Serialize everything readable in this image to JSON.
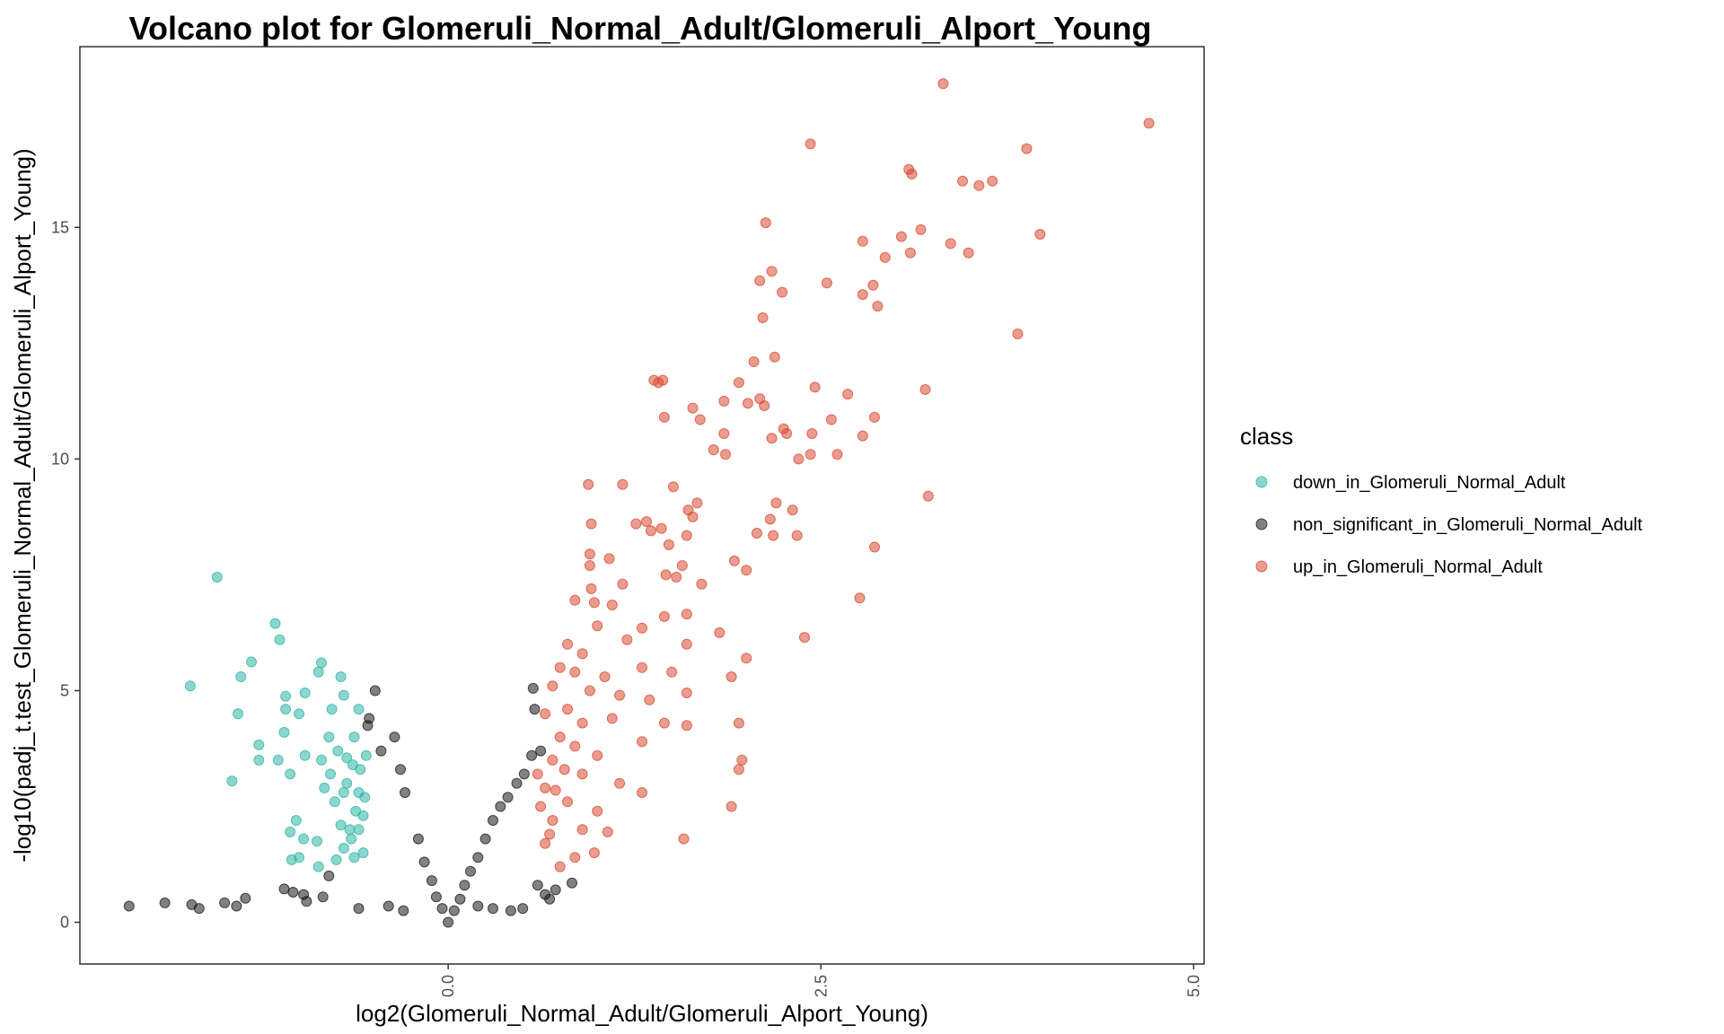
{
  "chart_data": {
    "type": "scatter",
    "title": "Volcano plot for Glomeruli_Normal_Adult/Glomeruli_Alport_Young",
    "xlabel": "log2(Glomeruli_Normal_Adult/Glomeruli_Alport_Young)",
    "ylabel": "-log10(padj_t.test_Glomeruli_Normal_Adult/Glomeruli_Alport_Young)",
    "xlim": [
      -2.47,
      5.07
    ],
    "ylim": [
      -0.9,
      18.9
    ],
    "x_ticks": [
      0.0,
      2.5,
      5.0
    ],
    "x_tick_labels": [
      "0.0",
      "2.5",
      "5.0"
    ],
    "y_ticks": [
      0,
      5,
      10,
      15
    ],
    "y_tick_labels": [
      "0",
      "5",
      "10",
      "15"
    ],
    "grid": false,
    "legend": {
      "title": "class",
      "position": "right"
    },
    "series": [
      {
        "name": "down_in_Glomeruli_Normal_Adult",
        "color": "#2db5a6",
        "points": [
          [
            -1.55,
            7.45
          ],
          [
            -1.73,
            5.1
          ],
          [
            -1.39,
            5.3
          ],
          [
            -1.32,
            5.62
          ],
          [
            -1.16,
            6.45
          ],
          [
            -1.13,
            6.1
          ],
          [
            -1.09,
            4.88
          ],
          [
            -1.09,
            4.6
          ],
          [
            -0.96,
            4.95
          ],
          [
            -0.85,
            5.6
          ],
          [
            -0.87,
            5.4
          ],
          [
            -0.72,
            5.3
          ],
          [
            -0.7,
            4.9
          ],
          [
            -0.78,
            4.6
          ],
          [
            -0.6,
            4.6
          ],
          [
            -1.41,
            4.5
          ],
          [
            -1.27,
            3.83
          ],
          [
            -1.27,
            3.5
          ],
          [
            -1.1,
            4.1
          ],
          [
            -1.0,
            4.5
          ],
          [
            -0.8,
            4.0
          ],
          [
            -0.63,
            4.0
          ],
          [
            -1.14,
            3.5
          ],
          [
            -1.06,
            3.2
          ],
          [
            -0.96,
            3.6
          ],
          [
            -0.85,
            3.5
          ],
          [
            -0.79,
            3.2
          ],
          [
            -1.45,
            3.05
          ],
          [
            -1.02,
            2.2
          ],
          [
            -1.06,
            1.95
          ],
          [
            -0.97,
            1.8
          ],
          [
            -0.88,
            1.75
          ],
          [
            -1.0,
            1.4
          ],
          [
            -0.87,
            1.2
          ],
          [
            -1.05,
            1.35
          ],
          [
            -0.76,
            2.6
          ],
          [
            -0.72,
            2.1
          ],
          [
            -0.68,
            3.0
          ],
          [
            -0.64,
            3.4
          ],
          [
            -0.6,
            2.8
          ],
          [
            -0.57,
            2.3
          ],
          [
            -0.55,
            3.6
          ],
          [
            -0.7,
            1.6
          ],
          [
            -0.65,
            1.8
          ],
          [
            -0.62,
            2.4
          ],
          [
            -0.74,
            3.7
          ],
          [
            -0.68,
            3.55
          ],
          [
            -0.83,
            2.9
          ],
          [
            -0.59,
            3.3
          ],
          [
            -0.66,
            2.0
          ],
          [
            -0.57,
            1.5
          ],
          [
            -0.63,
            1.4
          ],
          [
            -0.7,
            2.8
          ],
          [
            -0.75,
            1.35
          ],
          [
            -0.6,
            2.0
          ],
          [
            -0.56,
            2.7
          ]
        ]
      },
      {
        "name": "non_significant_in_Glomeruli_Normal_Adult",
        "color": "#1a1a1a",
        "points": [
          [
            -2.14,
            0.35
          ],
          [
            -1.9,
            0.42
          ],
          [
            -1.72,
            0.38
          ],
          [
            -1.67,
            0.3
          ],
          [
            -1.5,
            0.42
          ],
          [
            -1.42,
            0.35
          ],
          [
            -1.36,
            0.52
          ],
          [
            -1.1,
            0.72
          ],
          [
            -1.04,
            0.65
          ],
          [
            -0.97,
            0.6
          ],
          [
            -0.95,
            0.45
          ],
          [
            -0.84,
            0.55
          ],
          [
            -0.8,
            1.0
          ],
          [
            -0.49,
            5.0
          ],
          [
            -0.53,
            4.4
          ],
          [
            -0.36,
            4.0
          ],
          [
            -0.54,
            4.25
          ],
          [
            -0.45,
            3.7
          ],
          [
            -0.32,
            3.3
          ],
          [
            -0.29,
            2.8
          ],
          [
            -0.2,
            1.8
          ],
          [
            -0.16,
            1.3
          ],
          [
            -0.11,
            0.9
          ],
          [
            -0.08,
            0.55
          ],
          [
            -0.04,
            0.3
          ],
          [
            0.0,
            0.0
          ],
          [
            0.04,
            0.25
          ],
          [
            0.08,
            0.5
          ],
          [
            0.11,
            0.8
          ],
          [
            0.15,
            1.1
          ],
          [
            0.2,
            1.4
          ],
          [
            0.25,
            1.8
          ],
          [
            0.3,
            2.2
          ],
          [
            0.35,
            2.5
          ],
          [
            0.4,
            2.7
          ],
          [
            0.46,
            3.0
          ],
          [
            0.51,
            3.2
          ],
          [
            0.56,
            3.6
          ],
          [
            0.58,
            4.6
          ],
          [
            0.57,
            5.05
          ],
          [
            0.62,
            3.7
          ],
          [
            0.5,
            0.3
          ],
          [
            0.65,
            0.6
          ],
          [
            0.72,
            0.7
          ],
          [
            0.83,
            0.85
          ],
          [
            0.68,
            0.5
          ],
          [
            0.42,
            0.25
          ],
          [
            0.6,
            0.8
          ],
          [
            -0.6,
            0.3
          ],
          [
            -0.4,
            0.35
          ],
          [
            -0.3,
            0.25
          ],
          [
            0.3,
            0.3
          ],
          [
            0.2,
            0.35
          ]
        ]
      },
      {
        "name": "up_in_Glomeruli_Normal_Adult",
        "color": "#d94a33",
        "points": [
          [
            3.32,
            18.1
          ],
          [
            4.7,
            17.25
          ],
          [
            2.43,
            16.8
          ],
          [
            3.88,
            16.7
          ],
          [
            3.09,
            16.25
          ],
          [
            3.11,
            16.15
          ],
          [
            3.45,
            16.0
          ],
          [
            3.65,
            16.0
          ],
          [
            3.56,
            15.9
          ],
          [
            2.13,
            15.1
          ],
          [
            3.17,
            14.95
          ],
          [
            3.97,
            14.85
          ],
          [
            3.04,
            14.8
          ],
          [
            2.78,
            14.7
          ],
          [
            3.37,
            14.65
          ],
          [
            3.1,
            14.45
          ],
          [
            3.49,
            14.45
          ],
          [
            2.93,
            14.35
          ],
          [
            2.17,
            14.05
          ],
          [
            2.09,
            13.85
          ],
          [
            2.54,
            13.8
          ],
          [
            2.85,
            13.75
          ],
          [
            2.24,
            13.6
          ],
          [
            2.78,
            13.55
          ],
          [
            2.88,
            13.3
          ],
          [
            2.11,
            13.05
          ],
          [
            3.82,
            12.7
          ],
          [
            2.19,
            12.2
          ],
          [
            2.05,
            12.1
          ],
          [
            1.95,
            11.65
          ],
          [
            1.38,
            11.7
          ],
          [
            1.44,
            11.7
          ],
          [
            1.41,
            11.65
          ],
          [
            2.46,
            11.55
          ],
          [
            3.2,
            11.5
          ],
          [
            2.68,
            11.4
          ],
          [
            2.09,
            11.3
          ],
          [
            1.85,
            11.25
          ],
          [
            2.12,
            11.15
          ],
          [
            2.01,
            11.2
          ],
          [
            1.64,
            11.1
          ],
          [
            2.57,
            10.85
          ],
          [
            2.86,
            10.9
          ],
          [
            1.45,
            10.9
          ],
          [
            1.69,
            10.85
          ],
          [
            2.25,
            10.65
          ],
          [
            2.27,
            10.55
          ],
          [
            2.44,
            10.55
          ],
          [
            1.85,
            10.55
          ],
          [
            2.17,
            10.45
          ],
          [
            2.78,
            10.5
          ],
          [
            1.78,
            10.2
          ],
          [
            2.61,
            10.1
          ],
          [
            2.43,
            10.1
          ],
          [
            1.86,
            10.1
          ],
          [
            2.35,
            10.0
          ],
          [
            0.94,
            9.45
          ],
          [
            1.17,
            9.45
          ],
          [
            1.51,
            9.4
          ],
          [
            3.22,
            9.2
          ],
          [
            1.67,
            9.05
          ],
          [
            2.2,
            9.05
          ],
          [
            1.61,
            8.9
          ],
          [
            2.31,
            8.9
          ],
          [
            1.64,
            8.75
          ],
          [
            2.16,
            8.7
          ],
          [
            1.33,
            8.65
          ],
          [
            1.26,
            8.6
          ],
          [
            0.96,
            8.6
          ],
          [
            1.43,
            8.5
          ],
          [
            1.36,
            8.45
          ],
          [
            2.07,
            8.4
          ],
          [
            2.34,
            8.35
          ],
          [
            1.6,
            8.35
          ],
          [
            2.18,
            8.35
          ],
          [
            1.48,
            8.15
          ],
          [
            2.86,
            8.1
          ],
          [
            0.95,
            7.95
          ],
          [
            1.08,
            7.85
          ],
          [
            1.92,
            7.8
          ],
          [
            0.95,
            7.7
          ],
          [
            1.57,
            7.7
          ],
          [
            1.46,
            7.5
          ],
          [
            1.53,
            7.45
          ],
          [
            2.0,
            7.6
          ],
          [
            1.7,
            7.3
          ],
          [
            1.17,
            7.3
          ],
          [
            0.96,
            7.2
          ],
          [
            0.85,
            6.95
          ],
          [
            0.98,
            6.9
          ],
          [
            1.1,
            6.85
          ],
          [
            2.76,
            7.0
          ],
          [
            1.82,
            6.25
          ],
          [
            1.45,
            6.6
          ],
          [
            1.6,
            6.65
          ],
          [
            1.3,
            6.35
          ],
          [
            1.0,
            6.4
          ],
          [
            0.8,
            6.0
          ],
          [
            1.6,
            6.0
          ],
          [
            1.2,
            6.1
          ],
          [
            0.9,
            5.8
          ],
          [
            0.75,
            5.5
          ],
          [
            0.85,
            5.4
          ],
          [
            1.05,
            5.3
          ],
          [
            1.3,
            5.5
          ],
          [
            1.5,
            5.4
          ],
          [
            1.9,
            5.3
          ],
          [
            2.39,
            6.15
          ],
          [
            2.0,
            5.7
          ],
          [
            0.7,
            5.1
          ],
          [
            0.95,
            5.0
          ],
          [
            1.15,
            4.9
          ],
          [
            1.35,
            4.8
          ],
          [
            1.6,
            4.95
          ],
          [
            0.8,
            4.6
          ],
          [
            0.65,
            4.5
          ],
          [
            0.9,
            4.3
          ],
          [
            1.1,
            4.4
          ],
          [
            1.45,
            4.3
          ],
          [
            1.95,
            4.3
          ],
          [
            1.6,
            4.25
          ],
          [
            0.75,
            4.0
          ],
          [
            0.85,
            3.8
          ],
          [
            1.0,
            3.6
          ],
          [
            1.3,
            3.9
          ],
          [
            0.7,
            3.5
          ],
          [
            0.9,
            3.2
          ],
          [
            1.15,
            3.0
          ],
          [
            1.97,
            3.5
          ],
          [
            1.95,
            3.3
          ],
          [
            0.65,
            2.9
          ],
          [
            0.8,
            2.6
          ],
          [
            1.0,
            2.4
          ],
          [
            1.3,
            2.8
          ],
          [
            0.7,
            2.2
          ],
          [
            0.9,
            2.0
          ],
          [
            1.07,
            1.95
          ],
          [
            0.65,
            1.7
          ],
          [
            0.85,
            1.4
          ],
          [
            0.98,
            1.5
          ],
          [
            1.58,
            1.8
          ],
          [
            1.9,
            2.5
          ],
          [
            0.72,
            2.85
          ],
          [
            0.6,
            3.2
          ],
          [
            0.78,
            3.3
          ],
          [
            0.62,
            2.5
          ],
          [
            0.68,
            1.9
          ],
          [
            0.75,
            1.2
          ]
        ]
      }
    ]
  }
}
